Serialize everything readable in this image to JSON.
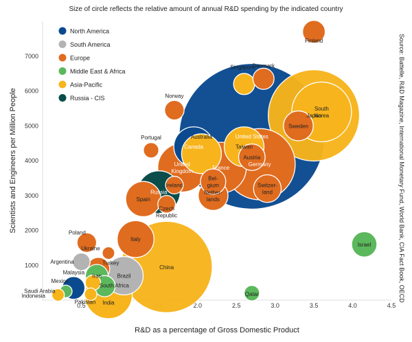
{
  "chart_data": {
    "type": "scatter",
    "subtype": "bubble",
    "title": "Size of circle reflects the relative amount of annual R&D spending by the indicated country",
    "xlabel": "R&D as a percentage of Gross Domestic Product",
    "ylabel": "Scientists and Engineers per Million People",
    "source": "Source: Battelle, R&D Magazine, International Monetary Fund, World Bank, CIA Fact Book, OECD",
    "xlim": [
      0,
      4.5
    ],
    "ylim": [
      0,
      8000
    ],
    "xticks": [
      "0.5",
      "1.0",
      "1.5",
      "2.0",
      "2.5",
      "3.0",
      "3.5",
      "4.0",
      "4.5"
    ],
    "xtick_values": [
      0.5,
      1.0,
      1.5,
      2.0,
      2.5,
      3.0,
      3.5,
      4.0,
      4.5
    ],
    "yticks": [
      "1000",
      "2000",
      "3000",
      "4000",
      "5000",
      "6000",
      "7000"
    ],
    "ytick_values": [
      1000,
      2000,
      3000,
      4000,
      5000,
      6000,
      7000
    ],
    "grid": false,
    "legend_position": "top-left",
    "regions": [
      {
        "name": "North America",
        "color": "#0b4a8f"
      },
      {
        "name": "South America",
        "color": "#b3b3b3"
      },
      {
        "name": "Europe",
        "color": "#e06c1f"
      },
      {
        "name": "Middle East & Africa",
        "color": "#5cb85c"
      },
      {
        "name": "Asia-Pacific",
        "color": "#f7b41c"
      },
      {
        "name": "Russia - CIS",
        "color": "#0b4d4a"
      }
    ],
    "points": [
      {
        "country": "United States",
        "region": "North America",
        "x": 2.7,
        "y": 4700,
        "spending": 400
      },
      {
        "country": "China",
        "region": "Asia-Pacific",
        "x": 1.6,
        "y": 950,
        "spending": 150
      },
      {
        "country": "Japan",
        "region": "Asia-Pacific",
        "x": 3.5,
        "y": 5300,
        "spending": 150
      },
      {
        "country": "Germany",
        "region": "Europe",
        "x": 2.8,
        "y": 3900,
        "spending": 88
      },
      {
        "country": "South Korea",
        "region": "Asia-Pacific",
        "x": 3.6,
        "y": 5400,
        "spending": 60
      },
      {
        "country": "France",
        "region": "Europe",
        "x": 2.3,
        "y": 3800,
        "spending": 42
      },
      {
        "country": "United Kingdom",
        "region": "Europe",
        "x": 1.8,
        "y": 3800,
        "spending": 38
      },
      {
        "country": "Canada",
        "region": "North America",
        "x": 1.95,
        "y": 4400,
        "spending": 24
      },
      {
        "country": "Sweden",
        "region": "Europe",
        "x": 3.3,
        "y": 5000,
        "spending": 12
      },
      {
        "country": "Australia",
        "region": "Asia-Pacific",
        "x": 2.05,
        "y": 4200,
        "spending": 24
      },
      {
        "country": "Taiwan",
        "region": "Asia-Pacific",
        "x": 2.6,
        "y": 4400,
        "spending": 24
      },
      {
        "country": "Austria",
        "region": "Europe",
        "x": 2.7,
        "y": 4100,
        "spending": 9
      },
      {
        "country": "Switzerland",
        "region": "Europe",
        "x": 2.9,
        "y": 3200,
        "spending": 10
      },
      {
        "country": "Belgium",
        "region": "Europe",
        "x": 2.2,
        "y": 3400,
        "spending": 8
      },
      {
        "country": "Netherlands",
        "region": "Europe",
        "x": 2.2,
        "y": 3000,
        "spending": 12
      },
      {
        "country": "Ireland",
        "region": "Europe",
        "x": 1.7,
        "y": 3300,
        "spending": 3
      },
      {
        "country": "Czech Republic",
        "region": "Europe",
        "x": 1.6,
        "y": 2750,
        "spending": 3
      },
      {
        "country": "Spain",
        "region": "Europe",
        "x": 1.3,
        "y": 2900,
        "spending": 18
      },
      {
        "country": "Russia",
        "region": "Russia - CIS",
        "x": 1.5,
        "y": 3100,
        "spending": 28
      },
      {
        "country": "Italy",
        "region": "Europe",
        "x": 1.2,
        "y": 1750,
        "spending": 20
      },
      {
        "country": "Poland",
        "region": "Europe",
        "x": 0.57,
        "y": 1650,
        "spending": 4
      },
      {
        "country": "Ukraine",
        "region": "Europe",
        "x": 0.85,
        "y": 1350,
        "spending": 1
      },
      {
        "country": "Brazil",
        "region": "South America",
        "x": 1.05,
        "y": 700,
        "spending": 22
      },
      {
        "country": "Argentina",
        "region": "South America",
        "x": 0.5,
        "y": 1100,
        "spending": 3
      },
      {
        "country": "Turkey",
        "region": "Europe",
        "x": 0.72,
        "y": 900,
        "spending": 6
      },
      {
        "country": "Iran",
        "region": "Middle East & Africa",
        "x": 0.7,
        "y": 700,
        "spending": 6
      },
      {
        "country": "South Africa",
        "region": "Middle East & Africa",
        "x": 0.8,
        "y": 400,
        "spending": 5
      },
      {
        "country": "India",
        "region": "Asia-Pacific",
        "x": 0.85,
        "y": 150,
        "spending": 36
      },
      {
        "country": "Malaysia",
        "region": "Asia-Pacific",
        "x": 0.65,
        "y": 500,
        "spending": 2
      },
      {
        "country": "Pakistan",
        "region": "Asia-Pacific",
        "x": 0.62,
        "y": 170,
        "spending": 1
      },
      {
        "country": "Mexico",
        "region": "North America",
        "x": 0.4,
        "y": 350,
        "spending": 6
      },
      {
        "country": "Saudi Arabia",
        "region": "Middle East & Africa",
        "x": 0.3,
        "y": 250,
        "spending": 1
      },
      {
        "country": "Indonesia",
        "region": "Asia-Pacific",
        "x": 0.2,
        "y": 150,
        "spending": 1
      },
      {
        "country": "Norway",
        "region": "Europe",
        "x": 1.7,
        "y": 5450,
        "spending": 4
      },
      {
        "country": "Portugal",
        "region": "Europe",
        "x": 1.4,
        "y": 4300,
        "spending": 2
      },
      {
        "country": "Singapore",
        "region": "Asia-Pacific",
        "x": 2.6,
        "y": 6200,
        "spending": 5
      },
      {
        "country": "Denmark",
        "region": "Europe",
        "x": 2.85,
        "y": 6350,
        "spending": 5
      },
      {
        "country": "Finland",
        "region": "Europe",
        "x": 3.5,
        "y": 7700,
        "spending": 6
      },
      {
        "country": "Israel",
        "region": "Middle East & Africa",
        "x": 4.15,
        "y": 1600,
        "spending": 8
      },
      {
        "country": "Qatar",
        "region": "Middle East & Africa",
        "x": 2.7,
        "y": 200,
        "spending": 2
      }
    ]
  }
}
